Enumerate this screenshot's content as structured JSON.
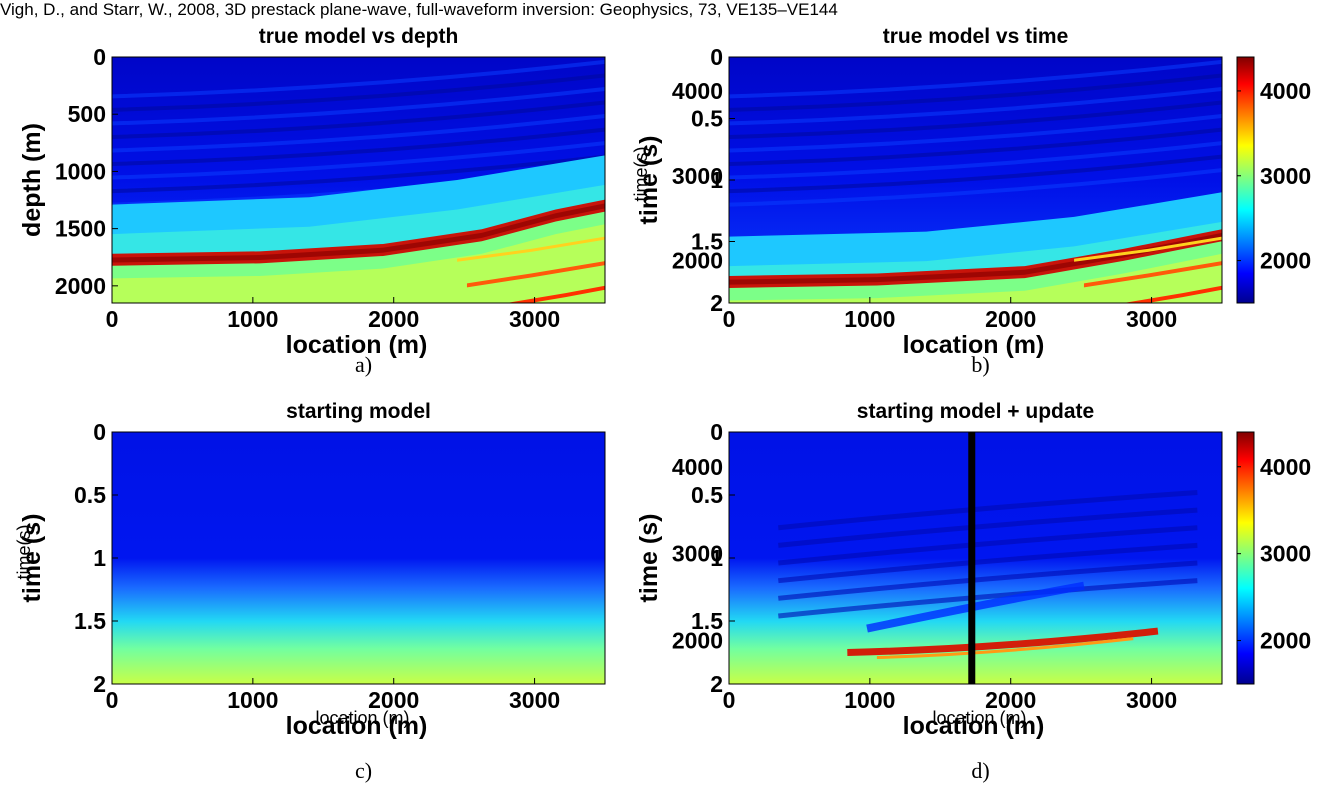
{
  "caption": "Vigh, D., and Starr, W., 2008, 3D prestack plane-wave, full-waveform inversion: Geophysics, 73, VE135–VE144",
  "colors": {
    "jet": [
      "#00008f",
      "#0000ff",
      "#00ffff",
      "#ffff00",
      "#ff0000",
      "#800000"
    ]
  },
  "chart_data": [
    {
      "id": "a",
      "type": "heatmap",
      "panel_label": "a)",
      "title": "true model vs depth",
      "xlabel": "location (m)",
      "ylabel": "depth (m)",
      "xlim": [
        0,
        3500
      ],
      "ylim": [
        2150,
        0
      ],
      "xticks": [
        0,
        1000,
        2000,
        3000
      ],
      "yticks": [
        0,
        500,
        1000,
        1500,
        2000
      ],
      "colormap": "jet",
      "clim": [
        1500,
        4400
      ],
      "field": "layered velocity model: ~1500-1800 at shallow depth, blue-to-cyan boundary near 1270 m, high-velocity red layer near 1750 m rising to ~1400 m at 3500 m, green/yellow below"
    },
    {
      "id": "b",
      "type": "heatmap",
      "panel_label": "b)",
      "title": "true model vs time",
      "xlabel": "location (m)",
      "ylabel": "time (s)",
      "ylabel_overlay": "time(s)",
      "xlim": [
        0,
        3500
      ],
      "ylim": [
        2,
        0
      ],
      "xticks": [
        0,
        1000,
        2000,
        3000
      ],
      "yticks": [
        0,
        0.5,
        1,
        1.5,
        2
      ],
      "colormap": "jet",
      "clim": [
        1500,
        4400
      ],
      "colorbar": {
        "ticks": [
          2000,
          3000,
          4000
        ]
      },
      "field": "same model mapped to time: cyan boundary near 1.45 s, red layer near 1.85 s rising to ~1.45 s at 3500 m"
    },
    {
      "id": "c",
      "type": "heatmap",
      "panel_label": "c)",
      "title": "starting model",
      "xlabel": "location (m)",
      "xlabel_overlay": "location (m)",
      "ylabel": "time (s)",
      "ylabel_overlay": "time(s)",
      "xlim": [
        0,
        3500
      ],
      "ylim": [
        2,
        0
      ],
      "xticks": [
        0,
        1000,
        2000,
        3000
      ],
      "yticks": [
        0,
        0.5,
        1,
        1.5,
        2
      ],
      "colormap": "jet",
      "clim": [
        1500,
        4400
      ],
      "field": "smooth gradient: blue down to ~1.1 s, cyan at ~1.5 s, green/yellow near 2 s"
    },
    {
      "id": "d",
      "type": "heatmap",
      "panel_label": "d)",
      "title": "starting model + update",
      "xlabel": "location (m)",
      "xlabel_overlay": "location (m)",
      "ylabel": "time (s)",
      "xlim": [
        0,
        3500
      ],
      "ylim": [
        2,
        0
      ],
      "xticks": [
        0,
        1000,
        2000,
        3000
      ],
      "yticks": [
        0,
        0.5,
        1,
        1.5,
        2
      ],
      "colormap": "jet",
      "clim": [
        1500,
        4400
      ],
      "colorbar": {
        "ticks": [
          2000,
          3000,
          4000
        ]
      },
      "marker_line_x": 1720,
      "field": "smooth gradient plus updates: dark blue streaks between 0.6-1.5 s, red lens near 1.8 s between 1000 and 2900 m"
    }
  ]
}
